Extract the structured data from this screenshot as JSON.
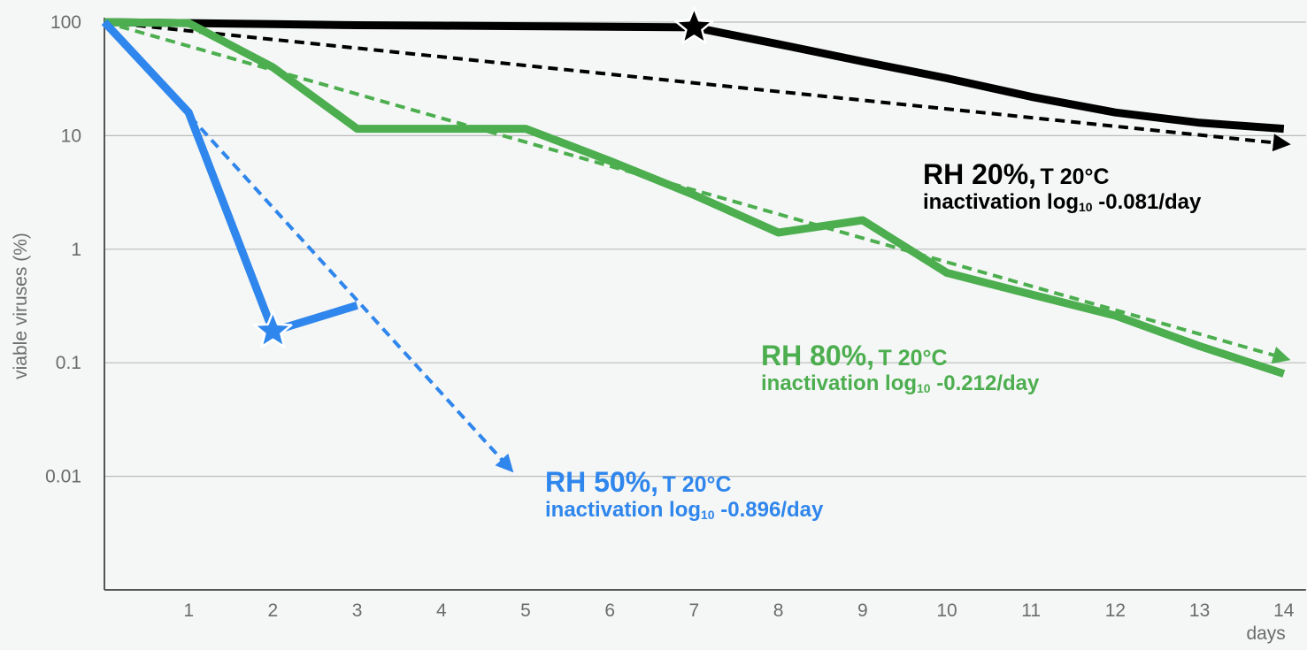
{
  "chart_data": {
    "type": "line",
    "ylabel": "viable viruses (%)",
    "xlabel": "days",
    "yscale": "log",
    "xlim": [
      0,
      14
    ],
    "ylim": [
      0.001,
      100
    ],
    "x_ticks": [
      1,
      2,
      3,
      4,
      5,
      6,
      7,
      8,
      9,
      10,
      11,
      12,
      13,
      14
    ],
    "y_ticks": [
      {
        "value": 100,
        "label": "100"
      },
      {
        "value": 10,
        "label": "10"
      },
      {
        "value": 1,
        "label": "1"
      },
      {
        "value": 0.1,
        "label": "0.1"
      },
      {
        "value": 0.01,
        "label": "0.01"
      }
    ],
    "grid": true,
    "series": [
      {
        "name": "RH 20%, T 20°C",
        "color": "#000000",
        "points": [
          [
            0,
            100
          ],
          [
            1,
            98
          ],
          [
            2,
            96
          ],
          [
            3,
            94
          ],
          [
            4,
            93
          ],
          [
            5,
            92
          ],
          [
            6,
            91
          ],
          [
            7,
            90
          ],
          [
            8,
            64
          ],
          [
            9,
            45
          ],
          [
            10,
            32
          ],
          [
            11,
            22
          ],
          [
            12,
            16
          ],
          [
            13,
            13
          ],
          [
            14,
            11.5
          ]
        ],
        "star_at": [
          7,
          90
        ],
        "trend": {
          "from": [
            0,
            100
          ],
          "to": [
            14,
            8.5
          ]
        },
        "label_line1": "RH 20%,",
        "label_line1_small": "T 20°C",
        "rate_prefix": "inactivation log",
        "rate_sub": "10",
        "rate_value": "-0.081/day"
      },
      {
        "name": "RH 80%, T 20°C",
        "color": "#4cae4f",
        "points": [
          [
            0,
            100
          ],
          [
            1,
            98
          ],
          [
            2,
            40
          ],
          [
            3,
            11.5
          ],
          [
            4,
            11.5
          ],
          [
            5,
            11.5
          ],
          [
            6,
            6
          ],
          [
            7,
            3
          ],
          [
            8,
            1.4
          ],
          [
            9,
            1.8
          ],
          [
            10,
            0.62
          ],
          [
            11,
            0.4
          ],
          [
            12,
            0.26
          ],
          [
            13,
            0.14
          ],
          [
            14,
            0.08
          ]
        ],
        "trend": {
          "from": [
            0,
            100
          ],
          "to": [
            14,
            0.11
          ]
        },
        "label_line1": "RH 80%,",
        "label_line1_small": "T 20°C",
        "rate_prefix": "inactivation log",
        "rate_sub": "10",
        "rate_value": "-0.212/day"
      },
      {
        "name": "RH 50%, T 20°C",
        "color": "#2f86ec",
        "points": [
          [
            0,
            100
          ],
          [
            1,
            16
          ],
          [
            2,
            0.19
          ],
          [
            3,
            0.32
          ]
        ],
        "star_at": [
          2,
          0.19
        ],
        "trend": {
          "from": [
            0,
            100
          ],
          "to": [
            4.8,
            0.012
          ]
        },
        "label_line1": "RH 50%,",
        "label_line1_small": "T 20°C",
        "rate_prefix": "inactivation log",
        "rate_sub": "10",
        "rate_value": "-0.896/day"
      }
    ]
  }
}
